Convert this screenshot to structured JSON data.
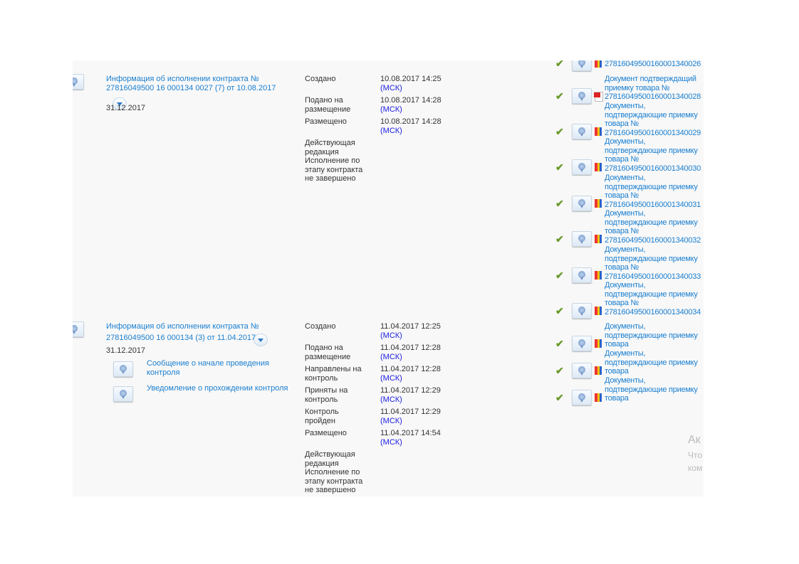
{
  "records": [
    {
      "title_line1": "Информация об исполнении контракта №",
      "title_line2": "27816049500 16 000134 0027 (7) от 10.08.2017",
      "date": "31.12.2017",
      "events": [
        {
          "label": "Создано",
          "value": "10.08.2017 14:25",
          "tz": "(МСК)"
        },
        {
          "label": "Подано на размещение",
          "value": "10.08.2017 14:28",
          "tz": "(МСК)"
        },
        {
          "label": "Размещено",
          "value": "10.08.2017 14:28",
          "tz": "(МСК)"
        }
      ],
      "status": "Действующая редакция Исполнение по этапу контракта не завершено",
      "documents": [
        {
          "text": "27816049500160001340026",
          "icon": "signature-icon"
        },
        {
          "text": "Документ подтверждащий приемку товара № 27816049500160001340028",
          "icon": "pdf-icon"
        },
        {
          "text": "Документы, подтверждающие приемку товара № 27816049500160001340029",
          "icon": "signature-icon"
        },
        {
          "text": "Документы, подтверждающие приемку товара № 27816049500160001340030",
          "icon": "signature-icon"
        },
        {
          "text": "Документы, подтверждающие приемку товара № 27816049500160001340031",
          "icon": "signature-icon"
        },
        {
          "text": "Документы, подтверждающие приемку товара № 27816049500160001340032",
          "icon": "signature-icon"
        },
        {
          "text": "Документы, подтверждающие приемку товара № 27816049500160001340033",
          "icon": "signature-icon"
        },
        {
          "text": "Документы, подтверждающие приемку товара № 27816049500160001340034",
          "icon": "signature-icon"
        }
      ]
    },
    {
      "title_line1": "Информация об исполнении контракта №",
      "title_line2": "27816049500 16 000134 (3) от 11.04.2017",
      "date": "31.12.2017",
      "sub_documents": [
        "Сообщение о начале проведения контроля",
        "Уведомление о прохождении контроля"
      ],
      "events": [
        {
          "label": "Создано",
          "value": "11.04.2017 12:25",
          "tz": "(МСК)"
        },
        {
          "label": "Подано на размещение",
          "value": "11.04.2017 12:28",
          "tz": "(МСК)"
        },
        {
          "label": "Направлены на контроль",
          "value": "11.04.2017 12:28",
          "tz": "(МСК)"
        },
        {
          "label": "Приняты на контроль",
          "value": "11.04.2017 12:29",
          "tz": "(МСК)"
        },
        {
          "label": "Контроль пройден",
          "value": "11.04.2017 12:29",
          "tz": "(МСК)"
        },
        {
          "label": "Размещено",
          "value": "11.04.2017 14:54",
          "tz": "(МСК)"
        }
      ],
      "status": "Действующая редакция Исполнение по этапу контракта не завершено",
      "documents": [
        {
          "text": "Документы, подтверждающие приемку товара",
          "icon": "signature-icon"
        },
        {
          "text": "Документы, подтверждающие приемку товара",
          "icon": "signature-icon"
        },
        {
          "text": "Документы, подтверждающие приемку товара",
          "icon": "signature-icon"
        }
      ]
    }
  ],
  "watermark": [
    "Ак",
    "Что",
    "ком"
  ],
  "colors": {
    "link": "#1a7fd0",
    "timezone": "#2020e0",
    "check": "#6a9a2c"
  }
}
